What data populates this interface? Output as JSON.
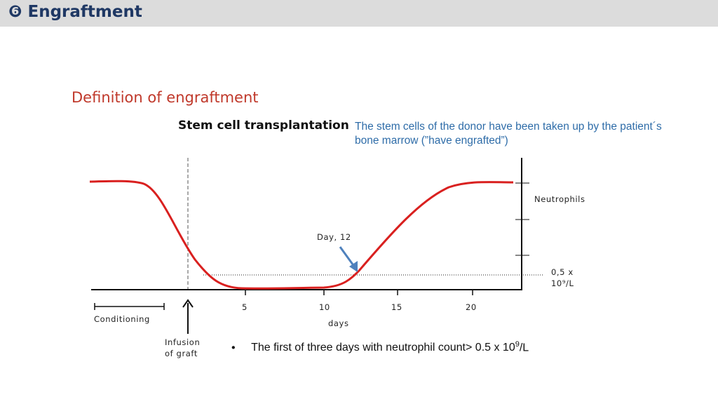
{
  "header": {
    "title": "❻ Engraftment"
  },
  "section_title": "Definition of engraftment",
  "subtitle": "Stem cell transplantation",
  "note": "The stem cells of the donor have  been taken up by the patient´s bone  marrow (”have engrafted”)",
  "diagram": {
    "day_label": "Day, 12",
    "neutrophils_label": "Neutrophils",
    "threshold_label_line1": "0,5 x",
    "threshold_label_line2": "10⁹/L",
    "x_ticks": [
      "5",
      "10",
      "15",
      "20"
    ],
    "x_axis_label": "days",
    "conditioning_label": "Conditioning",
    "infusion_label_line1": "Infusion",
    "infusion_label_line2": "of graft",
    "colors": {
      "curve": "#d9201f",
      "arrow": "#4f81bd"
    }
  },
  "bullet": {
    "marker": "•",
    "text": "The first of three days with  neutrophil count> 0.5 x 10",
    "superscript": "9",
    "suffix": "/L"
  }
}
